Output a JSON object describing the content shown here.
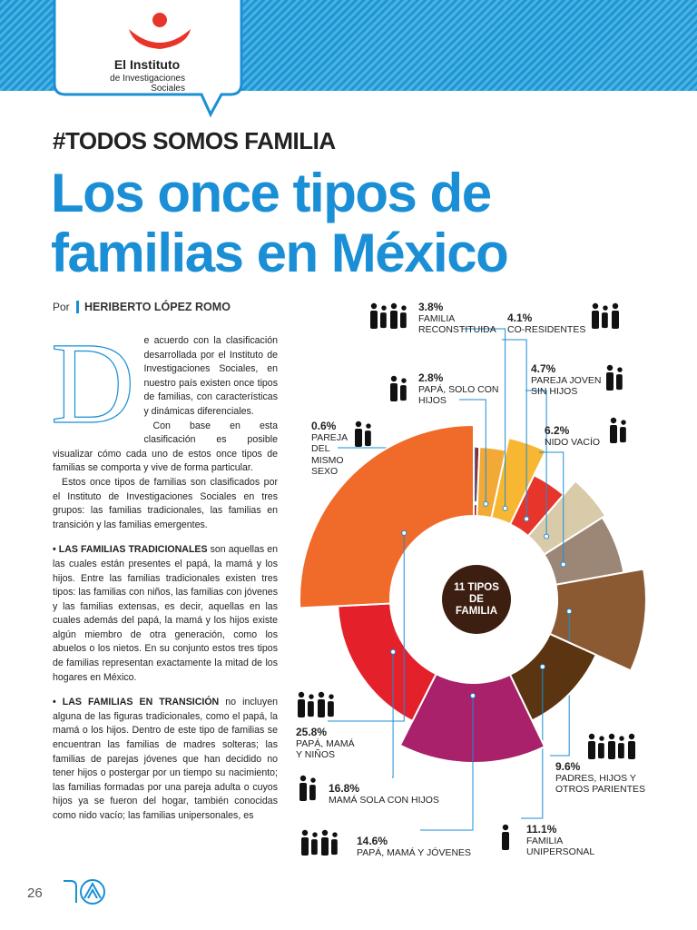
{
  "header": {
    "logo_title": "El Instituto",
    "logo_subtitle_1": "de Investigaciones",
    "logo_subtitle_2": "Sociales"
  },
  "kicker": "#TODOS SOMOS FAMILIA",
  "title_line_1": "Los once tipos de",
  "title_line_2": "familias en México",
  "byline": {
    "prefix": "Por",
    "author": "HERIBERTO LÓPEZ ROMO"
  },
  "article": {
    "drop_cap": "D",
    "paragraphs": [
      "e acuerdo con la clasificación desarrollada por el Instituto de Investigaciones Sociales, en nuestro país existen once tipos de familias, con características y dinámicas diferenciales.",
      "Con base en esta clasificación es posible visualizar cómo cada uno de estos once tipos de familias se comporta y vive de forma particular.",
      "Estos once tipos de familias son clasificados por el Instituto de Investigaciones Sociales en tres grupos: las familias tradicionales, las familias en transición y las familias emergentes."
    ],
    "sections": [
      {
        "lead": "• LAS FAMILIAS TRADICIONALES",
        "text": " son aquellas en las cuales están presentes el papá, la mamá y los hijos. Entre las familias tradicionales existen tres tipos: las familias con niños, las familias con jóvenes y las familias extensas, es decir, aquellas en las cuales además del papá, la mamá y los hijos existe algún miembro de otra generación, como los abuelos o los nietos. En su conjunto estos tres tipos de familias representan exactamente la mitad de los hogares en México."
      },
      {
        "lead": "• LAS FAMILIAS EN TRANSICIÓN",
        "text": " no incluyen alguna de las figuras tradicionales, como el papá, la mamá o los hijos. Dentro de este tipo de familias se encuentran las familias de madres solteras; las familias de parejas jóvenes que han decidido no tener hijos o postergar por un tiempo su nacimiento; las familias formadas por una pareja adulta o cuyos hijos ya se fueron del hogar, también conocidas como nido vacío; las familias unipersonales, es"
      }
    ]
  },
  "chart_data": {
    "type": "pie",
    "title": "11 TIPOS DE FAMILIA",
    "categories": [
      "PAREJA DEL MISMO SEXO",
      "PAPÁ, SOLO CON HIJOS",
      "FAMILIA RECONSTITUIDA",
      "CO-RESIDENTES",
      "PAREJA JOVEN SIN HIJOS",
      "NIDO VACÍO",
      "PADRES, HIJOS Y OTROS PARIENTES",
      "FAMILIA UNIPERSONAL",
      "PAPÁ, MAMÁ Y JÓVENES",
      "MAMÁ SOLA CON HIJOS",
      "PAPÁ, MAMÁ Y NIÑOS"
    ],
    "values": [
      0.6,
      2.8,
      3.8,
      4.1,
      4.7,
      6.2,
      9.6,
      11.1,
      14.6,
      16.8,
      25.8
    ],
    "value_labels": [
      "0.6%",
      "2.8%",
      "3.8%",
      "4.1%",
      "4.7%",
      "6.2%",
      "9.6%",
      "11.1%",
      "14.6%",
      "16.8%",
      "25.8%"
    ],
    "colors": [
      "#9b1b1e",
      "#f3a935",
      "#f7b733",
      "#e8352b",
      "#d9cba9",
      "#9c8676",
      "#8b5a32",
      "#5b3511",
      "#a8216a",
      "#e4202a",
      "#f06a2a"
    ]
  },
  "footer": {
    "page": "26"
  }
}
